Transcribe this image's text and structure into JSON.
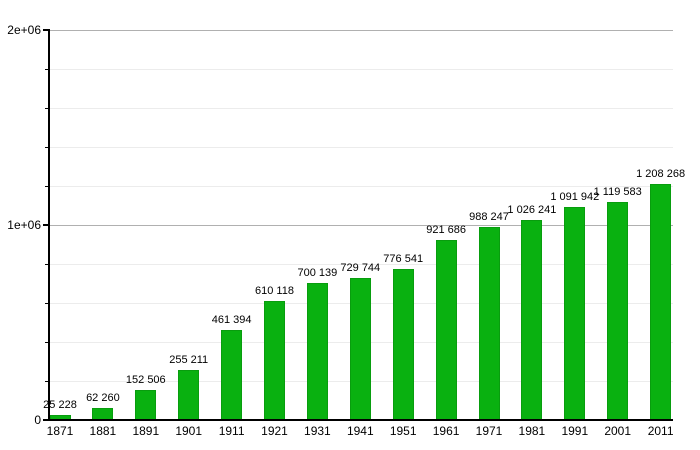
{
  "chart_data": {
    "type": "bar",
    "title": "",
    "xlabel": "",
    "ylabel": "",
    "categories": [
      "1871",
      "1881",
      "1891",
      "1901",
      "1911",
      "1921",
      "1931",
      "1941",
      "1951",
      "1961",
      "1971",
      "1981",
      "1991",
      "2001",
      "2011"
    ],
    "values": [
      25228,
      62260,
      152506,
      255211,
      461394,
      610118,
      700139,
      729744,
      776541,
      921686,
      988247,
      1026241,
      1091942,
      1119583,
      1208268
    ],
    "value_labels": [
      "25 228",
      "62 260",
      "152 506",
      "255 211",
      "461 394",
      "610 118",
      "700 139",
      "729 744",
      "776 541",
      "921 686",
      "988 247",
      "1 026 241",
      "1 091 942",
      "1 119 583",
      "1 208 268"
    ],
    "ylim": [
      0,
      2000000
    ],
    "y_major_ticks": [
      {
        "value": 0,
        "label": "0"
      },
      {
        "value": 1000000,
        "label": "1e+06"
      },
      {
        "value": 2000000,
        "label": "2e+06"
      }
    ],
    "y_minor_step": 200000,
    "grid": "on",
    "legend": "none",
    "colors": {
      "bar_fill": "#09b110",
      "bar_border": "#089d0e",
      "major_grid": "#b0b0b0",
      "minor_grid": "#ececec",
      "axis": "#000000",
      "text": "#000000",
      "background": "#ffffff"
    }
  }
}
